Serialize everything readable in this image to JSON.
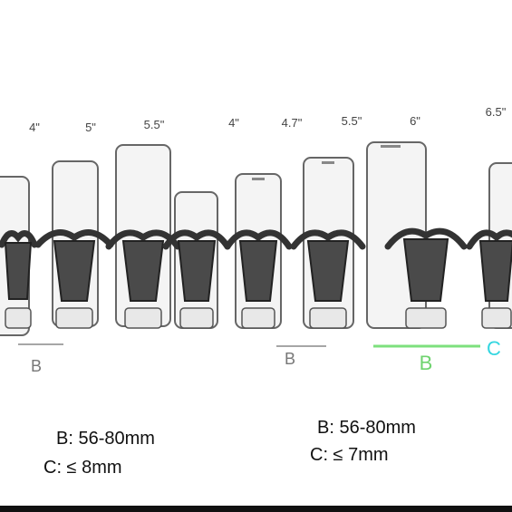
{
  "size_labels": [
    "4\"",
    "5\"",
    "5.5\"",
    "4\"",
    "4.7\"",
    "5.5\"",
    "6\"",
    "6.5\""
  ],
  "dimension_labels": {
    "left_b": "B",
    "middle_b": "B",
    "right_b": "B",
    "right_c": "C"
  },
  "specs_left": [
    "B: 56-80mm",
    "C: ≤ 8mm"
  ],
  "specs_right": [
    "B: 56-80mm",
    "C: ≤ 7mm"
  ]
}
